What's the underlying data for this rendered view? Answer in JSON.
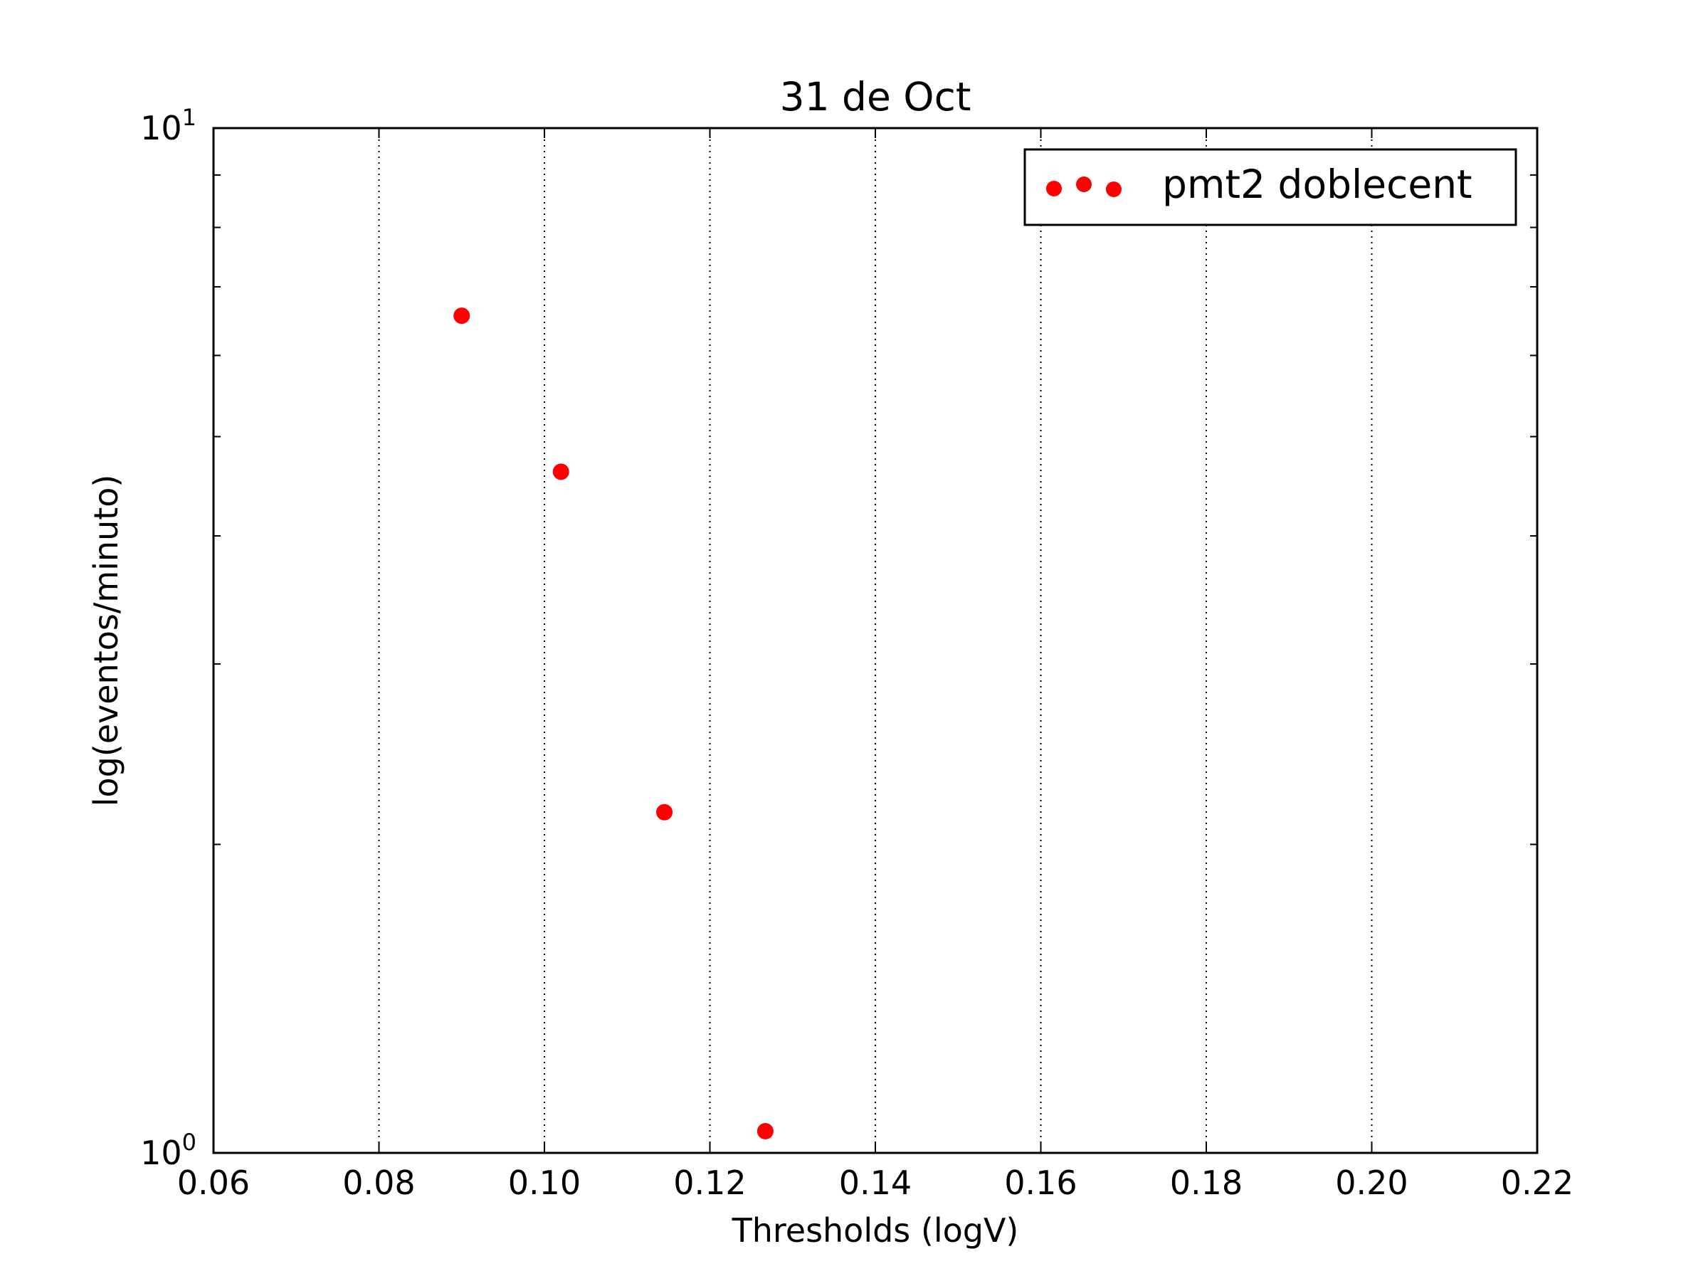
{
  "chart_data": {
    "type": "scatter",
    "title": "31 de Oct",
    "xlabel": "Thresholds (logV)",
    "ylabel": "log(eventos/minuto)",
    "xlim": [
      0.06,
      0.22
    ],
    "ylim": [
      1,
      10
    ],
    "yscale": "log",
    "x_ticks": [
      "0.06",
      "0.08",
      "0.10",
      "0.12",
      "0.14",
      "0.16",
      "0.18",
      "0.20",
      "0.22"
    ],
    "y_ticks": [
      {
        "base": "10",
        "exp": "0"
      },
      {
        "base": "10",
        "exp": "1"
      }
    ],
    "grid": "vertical dotted",
    "legend_position": "upper right",
    "series": [
      {
        "name": "pmt2 doblecent",
        "color": "#ff0000",
        "marker": "circle",
        "x": [
          0.09,
          0.102,
          0.1145,
          0.1267
        ],
        "y": [
          6.56,
          4.62,
          2.15,
          1.05
        ]
      }
    ]
  }
}
